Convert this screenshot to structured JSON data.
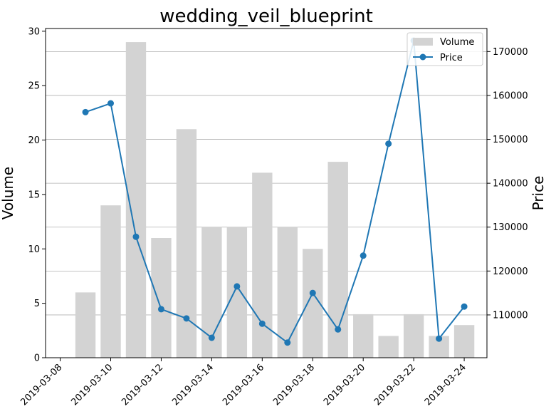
{
  "chart_data": {
    "type": "bar+line",
    "title": "wedding_veil_blueprint",
    "ylabel_left": "Volume",
    "ylabel_right": "Price",
    "dates": [
      "2019-03-09",
      "2019-03-10",
      "2019-03-11",
      "2019-03-12",
      "2019-03-13",
      "2019-03-14",
      "2019-03-15",
      "2019-03-16",
      "2019-03-17",
      "2019-03-18",
      "2019-03-19",
      "2019-03-20",
      "2019-03-21",
      "2019-03-22",
      "2019-03-23",
      "2019-03-24"
    ],
    "x_tick_labels": [
      "2019-03-08",
      "2019-03-10",
      "2019-03-12",
      "2019-03-14",
      "2019-03-16",
      "2019-03-18",
      "2019-03-20",
      "2019-03-22",
      "2019-03-24"
    ],
    "series": [
      {
        "name": "Volume",
        "kind": "bar",
        "axis": "left",
        "color": "#d3d3d3",
        "values": [
          6,
          14,
          29,
          11,
          21,
          12,
          12,
          17,
          12,
          10,
          18,
          4,
          2,
          4,
          2,
          3
        ]
      },
      {
        "name": "Price",
        "kind": "line",
        "axis": "right",
        "color": "#1f77b4",
        "values": [
          156200,
          158200,
          127800,
          111300,
          109200,
          104800,
          116500,
          108000,
          103700,
          115000,
          106700,
          123500,
          149000,
          172500,
          104600,
          111900
        ]
      }
    ],
    "ylim_left": [
      0,
      30.25
    ],
    "yticks_left": [
      0,
      5,
      10,
      15,
      20,
      25,
      30
    ],
    "ylim_right": [
      100250,
      175250
    ],
    "yticks_right": [
      110000,
      120000,
      130000,
      140000,
      150000,
      160000,
      170000
    ],
    "grid": "horizontal (right axis)",
    "legend_position": "top-right"
  }
}
